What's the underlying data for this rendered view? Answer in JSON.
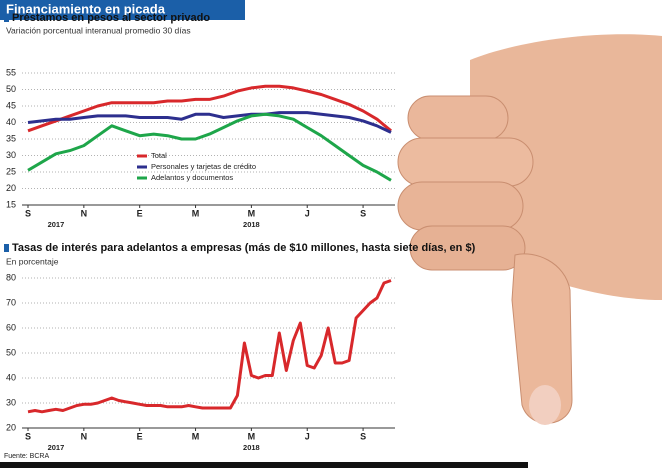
{
  "header": {
    "title": "Financiamiento en picada",
    "source": "Fuente: BCRA"
  },
  "chart_data": [
    {
      "type": "line",
      "title": "Préstamos en pesos al sector privado",
      "subtitle": "Variación porcentual interanual promedio 30 días",
      "categories": [
        "S",
        null,
        null,
        null,
        "N",
        null,
        null,
        null,
        "E",
        null,
        null,
        null,
        "M",
        null,
        null,
        null,
        "M",
        null,
        null,
        null,
        "J",
        null,
        null,
        null,
        "S",
        null,
        null
      ],
      "x_group_labels": [
        "2017",
        "2018"
      ],
      "series": [
        {
          "name": "Total",
          "color": "#d8282b",
          "values": [
            37.5,
            39,
            40.5,
            42,
            43.5,
            45,
            46,
            46,
            46,
            46,
            46.5,
            46.5,
            47,
            47,
            48,
            49.5,
            50.5,
            51,
            51,
            50.5,
            49.5,
            48.5,
            47,
            45.5,
            43.5,
            41,
            37.5
          ]
        },
        {
          "name": "Personales y tarjetas de crédito",
          "color": "#2d2f8e",
          "values": [
            40,
            40.5,
            41,
            41,
            41.5,
            42,
            42,
            42,
            41.5,
            41.5,
            41.5,
            41,
            42.5,
            42.5,
            41.5,
            42,
            42.5,
            42.5,
            43,
            43,
            43,
            42.5,
            42,
            41.5,
            40.5,
            39,
            37
          ]
        },
        {
          "name": "Adelantos y documentos",
          "color": "#1ea64a",
          "values": [
            25.5,
            28,
            30.5,
            31.5,
            33,
            36,
            39,
            37.5,
            36,
            36.5,
            36,
            35,
            35,
            36.5,
            38.5,
            40.5,
            42,
            42.5,
            42,
            41,
            38.5,
            36,
            33,
            30,
            27,
            25,
            22.5
          ]
        }
      ],
      "ylim": [
        15,
        55
      ],
      "yticks": [
        15,
        20,
        25,
        30,
        35,
        40,
        45,
        50,
        55
      ],
      "grid": true
    },
    {
      "type": "line",
      "title": "Tasas de interés para adelantos a empresas (más de $10 millones, hasta siete días, en $)",
      "subtitle": "En porcentaje",
      "categories": [
        "S",
        null,
        null,
        null,
        null,
        null,
        null,
        null,
        "N",
        null,
        null,
        null,
        null,
        null,
        null,
        null,
        "E",
        null,
        null,
        null,
        null,
        null,
        null,
        null,
        "M",
        null,
        null,
        null,
        null,
        null,
        null,
        null,
        "M",
        null,
        null,
        null,
        null,
        null,
        null,
        null,
        "J",
        null,
        null,
        null,
        null,
        null,
        null,
        null,
        "S",
        null,
        null,
        null,
        null
      ],
      "x_group_labels": [
        "2017",
        "2018"
      ],
      "color": "#d8282b",
      "values": [
        26.5,
        27,
        26.5,
        27,
        27.5,
        27,
        28,
        29,
        29.5,
        29.5,
        30,
        31,
        32,
        31,
        30.5,
        30,
        29.5,
        29,
        29,
        29,
        28.5,
        28.5,
        28.5,
        29,
        28.5,
        28,
        28,
        28,
        28,
        28,
        33,
        54,
        41,
        40,
        41,
        41,
        58,
        43,
        55,
        62,
        45,
        44,
        49,
        60,
        46,
        46,
        47,
        64,
        67,
        70,
        72,
        78,
        79
      ],
      "ylim": [
        20,
        80
      ],
      "yticks": [
        20,
        30,
        40,
        50,
        60,
        70,
        80
      ],
      "grid": true
    }
  ]
}
